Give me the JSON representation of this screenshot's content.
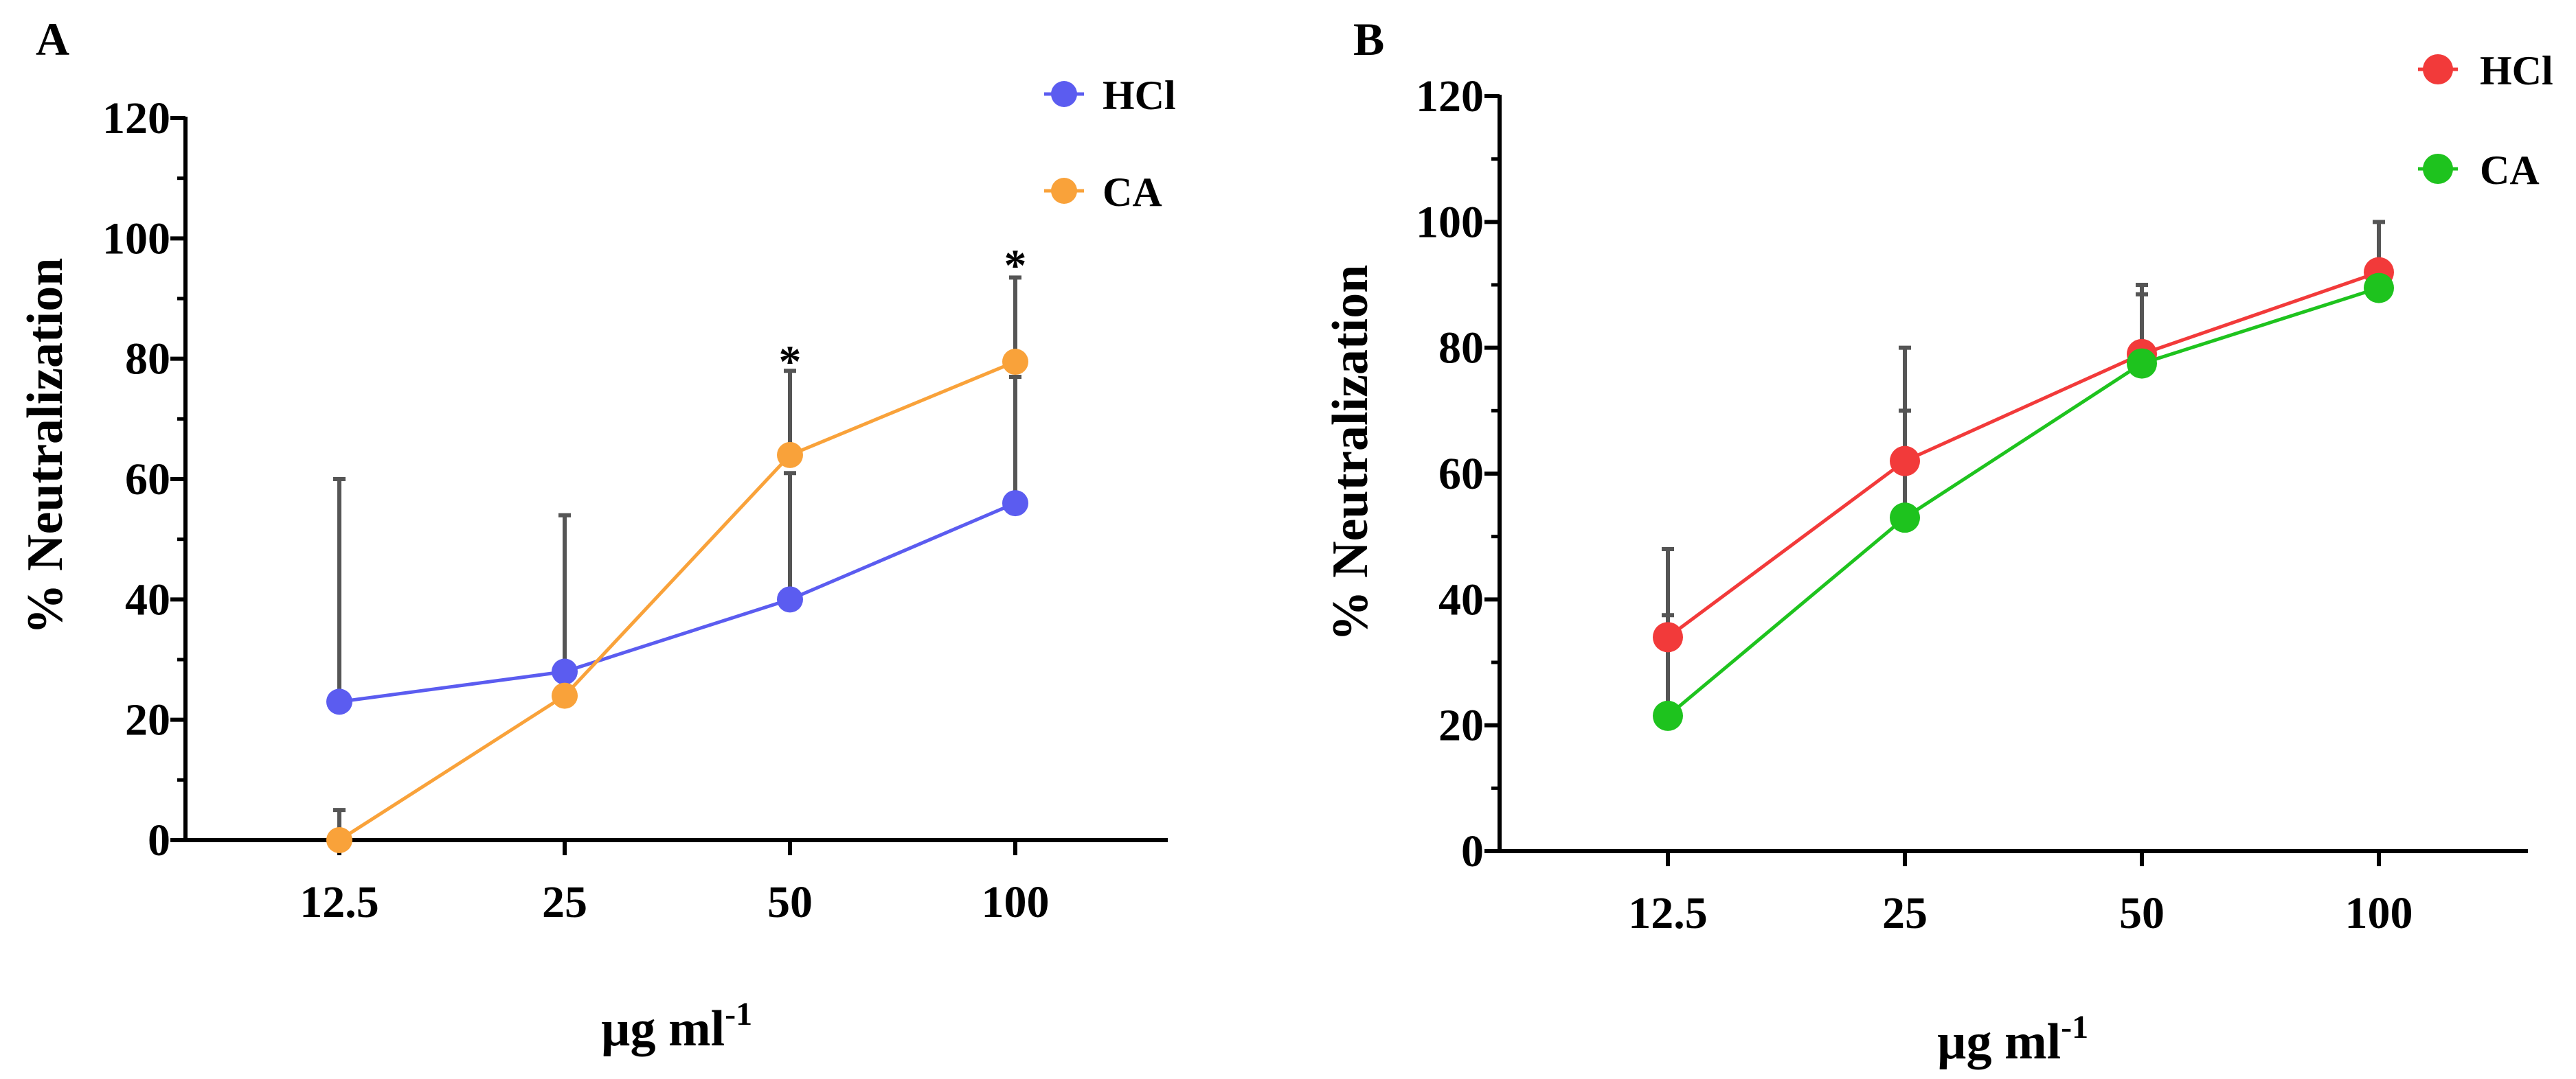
{
  "chart_data": [
    {
      "type": "line",
      "panel_label": "A",
      "categories": [
        "12.5",
        "25",
        "50",
        "100"
      ],
      "ylabel": "% Neutralization",
      "xlabel_main": "µg ml",
      "xlabel_sup": "-1",
      "ylim": [
        0,
        120
      ],
      "yticks": [
        0,
        20,
        40,
        60,
        80,
        100,
        120
      ],
      "ytick_labels": [
        "0",
        "20",
        "40",
        "60",
        "80",
        "100",
        "120"
      ],
      "legend_position": "top-right",
      "series": [
        {
          "name": "HCl",
          "color": "#5b5cf0",
          "values": [
            23,
            28,
            40,
            56
          ],
          "errors": [
            37,
            26,
            21,
            21
          ]
        },
        {
          "name": "CA",
          "color": "#f9a23a",
          "values": [
            0,
            24,
            64,
            79.5
          ],
          "errors": [
            5,
            0,
            14,
            14
          ]
        }
      ],
      "annotations": [
        {
          "text": "*",
          "category": "50",
          "y": 80
        },
        {
          "text": "*",
          "category": "100",
          "y": 96
        }
      ]
    },
    {
      "type": "line",
      "panel_label": "B",
      "categories": [
        "12.5",
        "25",
        "50",
        "100"
      ],
      "ylabel": "% Neutralization",
      "xlabel_main": "µg ml",
      "xlabel_sup": "-1",
      "ylim": [
        0,
        120
      ],
      "yticks": [
        0,
        20,
        40,
        60,
        80,
        100,
        120
      ],
      "ytick_labels": [
        "0",
        "20",
        "40",
        "60",
        "80",
        "100",
        "120"
      ],
      "legend_position": "top-right",
      "series": [
        {
          "name": "HCl",
          "color": "#f23a3a",
          "values": [
            34,
            62,
            79,
            92
          ],
          "errors": [
            14,
            18,
            11,
            8
          ]
        },
        {
          "name": "CA",
          "color": "#1ec31e",
          "values": [
            21.5,
            53,
            77.5,
            89.5
          ],
          "errors": [
            16,
            17,
            11,
            0
          ]
        }
      ],
      "annotations": []
    }
  ]
}
